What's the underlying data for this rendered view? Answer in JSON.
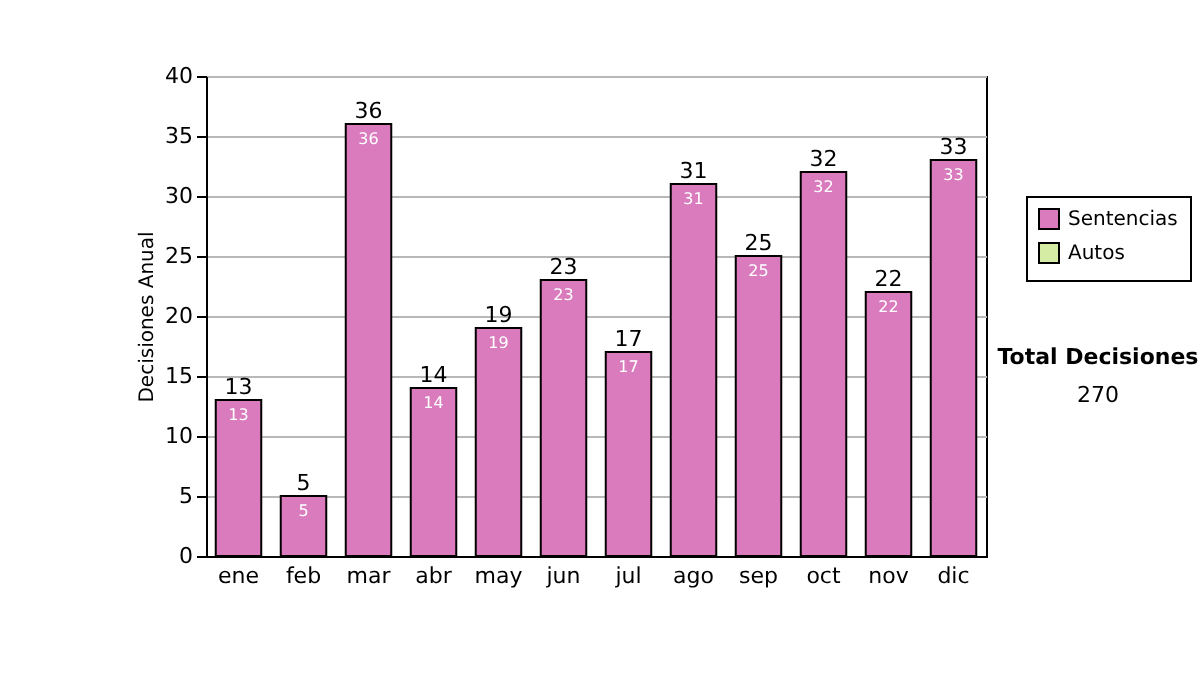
{
  "chart_data": {
    "type": "bar",
    "ylabel": "Decisiones Anual",
    "categories": [
      "ene",
      "feb",
      "mar",
      "abr",
      "may",
      "jun",
      "jul",
      "ago",
      "sep",
      "oct",
      "nov",
      "dic"
    ],
    "series": [
      {
        "name": "Sentencias",
        "color": "#d97bbd",
        "values": [
          13,
          5,
          36,
          14,
          19,
          23,
          17,
          31,
          25,
          32,
          22,
          33
        ]
      },
      {
        "name": "Autos",
        "color": "#d4eca4",
        "values": [
          null,
          null,
          null,
          null,
          null,
          null,
          null,
          null,
          null,
          null,
          null,
          null
        ]
      }
    ],
    "stacked": true,
    "data_labels": true,
    "totals": [
      "13",
      "5",
      "36",
      "14",
      "19",
      "23",
      "17",
      "31",
      "25",
      "32",
      "22",
      "33"
    ],
    "ylim": [
      0,
      40
    ],
    "yticks": [
      0,
      5,
      10,
      15,
      20,
      25,
      30,
      35,
      40
    ],
    "grid": "y",
    "legend": "right",
    "annotations": [
      "Total Decisiones",
      "270"
    ]
  }
}
